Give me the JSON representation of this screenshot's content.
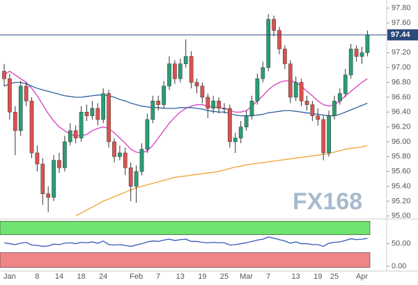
{
  "chart_data": [
    {
      "type": "candlestick",
      "categories": [
        null,
        "Jan",
        null,
        null,
        null,
        null,
        "8",
        null,
        null,
        null,
        "14",
        null,
        null,
        null,
        "18",
        null,
        null,
        null,
        "24",
        null,
        null,
        null,
        null,
        null,
        "Feb",
        null,
        null,
        null,
        "7",
        null,
        null,
        null,
        "13",
        null,
        null,
        null,
        "19",
        null,
        null,
        null,
        "25",
        null,
        null,
        null,
        "Mar",
        null,
        null,
        null,
        "7",
        null,
        null,
        null,
        null,
        "13",
        null,
        null,
        null,
        "19",
        null,
        null,
        "25",
        null,
        null,
        null,
        null,
        "Apr",
        null
      ],
      "open": [
        96.95,
        96.85,
        96.4,
        96.15,
        96.75,
        96.55,
        95.85,
        95.7,
        95.3,
        95.25,
        95.75,
        95.65,
        96.0,
        96.15,
        96.05,
        96.4,
        96.35,
        96.45,
        96.3,
        96.65,
        96.0,
        95.8,
        95.85,
        95.65,
        95.4,
        95.6,
        95.9,
        96.3,
        96.55,
        96.5,
        96.75,
        97.05,
        96.85,
        97.05,
        97.15,
        96.8,
        96.75,
        96.6,
        96.45,
        96.55,
        96.45,
        96.45,
        96.0,
        96.05,
        96.2,
        96.35,
        96.55,
        96.85,
        97.0,
        97.65,
        97.5,
        97.25,
        97.05,
        96.6,
        96.8,
        96.55,
        96.5,
        96.35,
        96.3,
        95.85,
        96.35,
        96.55,
        96.65,
        96.9,
        97.25,
        97.15,
        97.2
      ],
      "high": [
        97.05,
        96.92,
        96.48,
        96.82,
        96.8,
        96.6,
        95.95,
        95.78,
        95.4,
        95.82,
        95.85,
        96.08,
        96.25,
        96.22,
        96.48,
        96.5,
        96.55,
        96.52,
        96.72,
        96.7,
        96.05,
        95.95,
        95.92,
        95.72,
        95.68,
        95.98,
        96.38,
        96.62,
        96.62,
        96.82,
        97.15,
        97.1,
        97.12,
        97.38,
        97.22,
        96.85,
        96.8,
        96.65,
        96.62,
        96.6,
        96.52,
        96.5,
        96.12,
        96.28,
        96.42,
        96.62,
        96.92,
        97.08,
        97.72,
        97.7,
        97.55,
        97.3,
        97.1,
        96.88,
        96.85,
        96.62,
        96.55,
        96.45,
        96.35,
        96.42,
        96.62,
        96.72,
        96.98,
        97.32,
        97.3,
        97.28,
        97.5
      ],
      "low": [
        96.75,
        96.3,
        95.82,
        96.08,
        96.48,
        95.78,
        95.6,
        95.15,
        95.05,
        95.2,
        95.58,
        95.6,
        95.95,
        95.98,
        96.0,
        96.28,
        96.3,
        96.22,
        96.25,
        95.92,
        95.72,
        95.75,
        95.55,
        95.2,
        95.18,
        95.55,
        95.85,
        96.25,
        96.42,
        96.45,
        96.7,
        96.78,
        96.8,
        97.0,
        96.72,
        96.65,
        96.52,
        96.32,
        96.38,
        96.38,
        96.38,
        95.92,
        95.85,
        95.98,
        96.15,
        96.3,
        96.5,
        96.8,
        96.95,
        97.42,
        97.18,
        96.98,
        96.52,
        96.55,
        96.48,
        96.42,
        96.28,
        96.22,
        95.75,
        95.8,
        96.3,
        96.5,
        96.6,
        96.85,
        97.08,
        97.05,
        97.15
      ],
      "close": [
        96.85,
        96.4,
        96.15,
        96.75,
        96.55,
        95.85,
        95.7,
        95.3,
        95.25,
        95.75,
        95.65,
        96.0,
        96.15,
        96.05,
        96.4,
        96.35,
        96.45,
        96.3,
        96.65,
        96.0,
        95.8,
        95.85,
        95.65,
        95.4,
        95.6,
        95.9,
        96.3,
        96.55,
        96.5,
        96.75,
        97.05,
        96.85,
        97.05,
        97.15,
        96.8,
        96.75,
        96.6,
        96.45,
        96.55,
        96.45,
        96.45,
        96.0,
        96.05,
        96.2,
        96.35,
        96.55,
        96.85,
        97.0,
        97.65,
        97.5,
        97.25,
        97.05,
        96.6,
        96.8,
        96.55,
        96.5,
        96.35,
        96.3,
        95.85,
        96.35,
        96.55,
        96.65,
        96.9,
        97.25,
        97.15,
        97.2,
        97.44
      ],
      "up_color": "#2a9d74",
      "down_color": "#d9534f",
      "series": [
        {
          "color": "#d63cc0",
          "values": [
            96.9,
            96.95,
            96.9,
            96.85,
            96.8,
            96.72,
            96.62,
            96.5,
            96.38,
            96.28,
            96.2,
            96.15,
            96.1,
            96.08,
            96.08,
            96.1,
            96.15,
            96.18,
            96.2,
            96.18,
            96.12,
            96.05,
            95.98,
            95.9,
            95.86,
            95.85,
            95.88,
            95.95,
            96.05,
            96.15,
            96.25,
            96.33,
            96.4,
            96.45,
            96.48,
            96.5,
            96.5,
            96.48,
            96.47,
            96.46,
            96.45,
            96.42,
            96.4,
            96.4,
            96.42,
            96.48,
            96.55,
            96.62,
            96.7,
            96.76,
            96.8,
            96.82,
            96.82,
            96.8,
            96.75,
            96.68,
            96.62,
            96.55,
            96.5,
            96.48,
            96.5,
            96.55,
            96.62,
            96.68,
            96.74,
            96.8,
            96.85
          ]
        },
        {
          "color": "#2f5f9e",
          "values": [
            96.75,
            96.78,
            96.8,
            96.8,
            96.78,
            96.75,
            96.72,
            96.7,
            96.68,
            96.66,
            96.64,
            96.62,
            96.61,
            96.6,
            96.6,
            96.61,
            96.62,
            96.63,
            96.63,
            96.62,
            96.6,
            96.57,
            96.55,
            96.52,
            96.5,
            96.48,
            96.47,
            96.46,
            96.46,
            96.45,
            96.45,
            96.45,
            96.46,
            96.46,
            96.46,
            96.45,
            96.44,
            96.42,
            96.41,
            96.4,
            96.4,
            96.38,
            96.36,
            96.35,
            96.35,
            96.35,
            96.36,
            96.37,
            96.39,
            96.4,
            96.41,
            96.42,
            96.42,
            96.41,
            96.4,
            96.39,
            96.38,
            96.37,
            96.36,
            96.35,
            96.35,
            96.37,
            96.4,
            96.43,
            96.46,
            96.49,
            96.52
          ]
        },
        {
          "color": "#f0a030",
          "values": [
            null,
            null,
            null,
            null,
            null,
            null,
            null,
            null,
            null,
            null,
            null,
            null,
            null,
            95.0,
            95.04,
            95.08,
            95.12,
            95.16,
            95.2,
            95.23,
            95.26,
            95.29,
            95.32,
            95.35,
            95.38,
            95.4,
            95.42,
            95.44,
            95.46,
            95.48,
            95.5,
            95.52,
            95.53,
            95.54,
            95.55,
            95.56,
            95.57,
            95.58,
            95.59,
            95.6,
            95.62,
            95.64,
            95.66,
            95.67,
            95.69,
            95.7,
            95.71,
            95.72,
            95.73,
            95.74,
            95.75,
            95.76,
            95.77,
            95.78,
            95.79,
            95.8,
            95.81,
            95.82,
            95.83,
            95.84,
            95.86,
            95.88,
            95.9,
            95.91,
            95.92,
            95.93,
            95.95
          ]
        }
      ],
      "ylim": [
        94.96,
        97.91
      ],
      "yticks": [
        {
          "value": 95.0,
          "label": "95.00"
        },
        {
          "value": 95.2,
          "label": "95.20"
        },
        {
          "value": 95.4,
          "label": "95.40"
        },
        {
          "value": 95.6,
          "label": "95.60"
        },
        {
          "value": 95.8,
          "label": "95.80"
        },
        {
          "value": 96.0,
          "label": "96.00"
        },
        {
          "value": 96.2,
          "label": "96.20"
        },
        {
          "value": 96.4,
          "label": "96.40"
        },
        {
          "value": 96.6,
          "label": "96.60"
        },
        {
          "value": 96.8,
          "label": "96.80"
        },
        {
          "value": 97.0,
          "label": "97.00"
        },
        {
          "value": 97.2,
          "label": "97.20"
        },
        {
          "value": 97.4,
          "label": "97.40"
        },
        {
          "value": 97.6,
          "label": "97.60"
        },
        {
          "value": 97.8,
          "label": "97.80"
        }
      ],
      "last": {
        "value": 97.44,
        "label": "97.44",
        "color": "#2b4a7a"
      },
      "watermark": "FX168"
    },
    {
      "type": "line",
      "values": [
        52,
        50,
        48,
        51,
        53,
        47,
        46,
        44,
        45,
        49,
        48,
        51,
        52,
        50,
        53,
        52,
        54,
        51,
        56,
        48,
        47,
        48,
        46,
        44,
        47,
        50,
        54,
        56,
        55,
        58,
        60,
        57,
        59,
        60,
        55,
        55,
        53,
        52,
        53,
        52,
        52,
        47,
        48,
        50,
        52,
        55,
        58,
        60,
        65,
        62,
        59,
        56,
        51,
        54,
        50,
        50,
        48,
        48,
        44,
        51,
        53,
        54,
        57,
        61,
        59,
        60,
        62
      ],
      "color": "#3355bb",
      "ylim": [
        -11,
        105
      ],
      "yticks": [
        {
          "value": 0,
          "label": "0.00"
        },
        {
          "value": 50,
          "label": "50.00"
        }
      ],
      "bands": [
        {
          "from": 70,
          "to": 100,
          "color": "#6fe36f"
        },
        {
          "from": -3,
          "to": 30,
          "color": "#f08585"
        }
      ]
    }
  ]
}
